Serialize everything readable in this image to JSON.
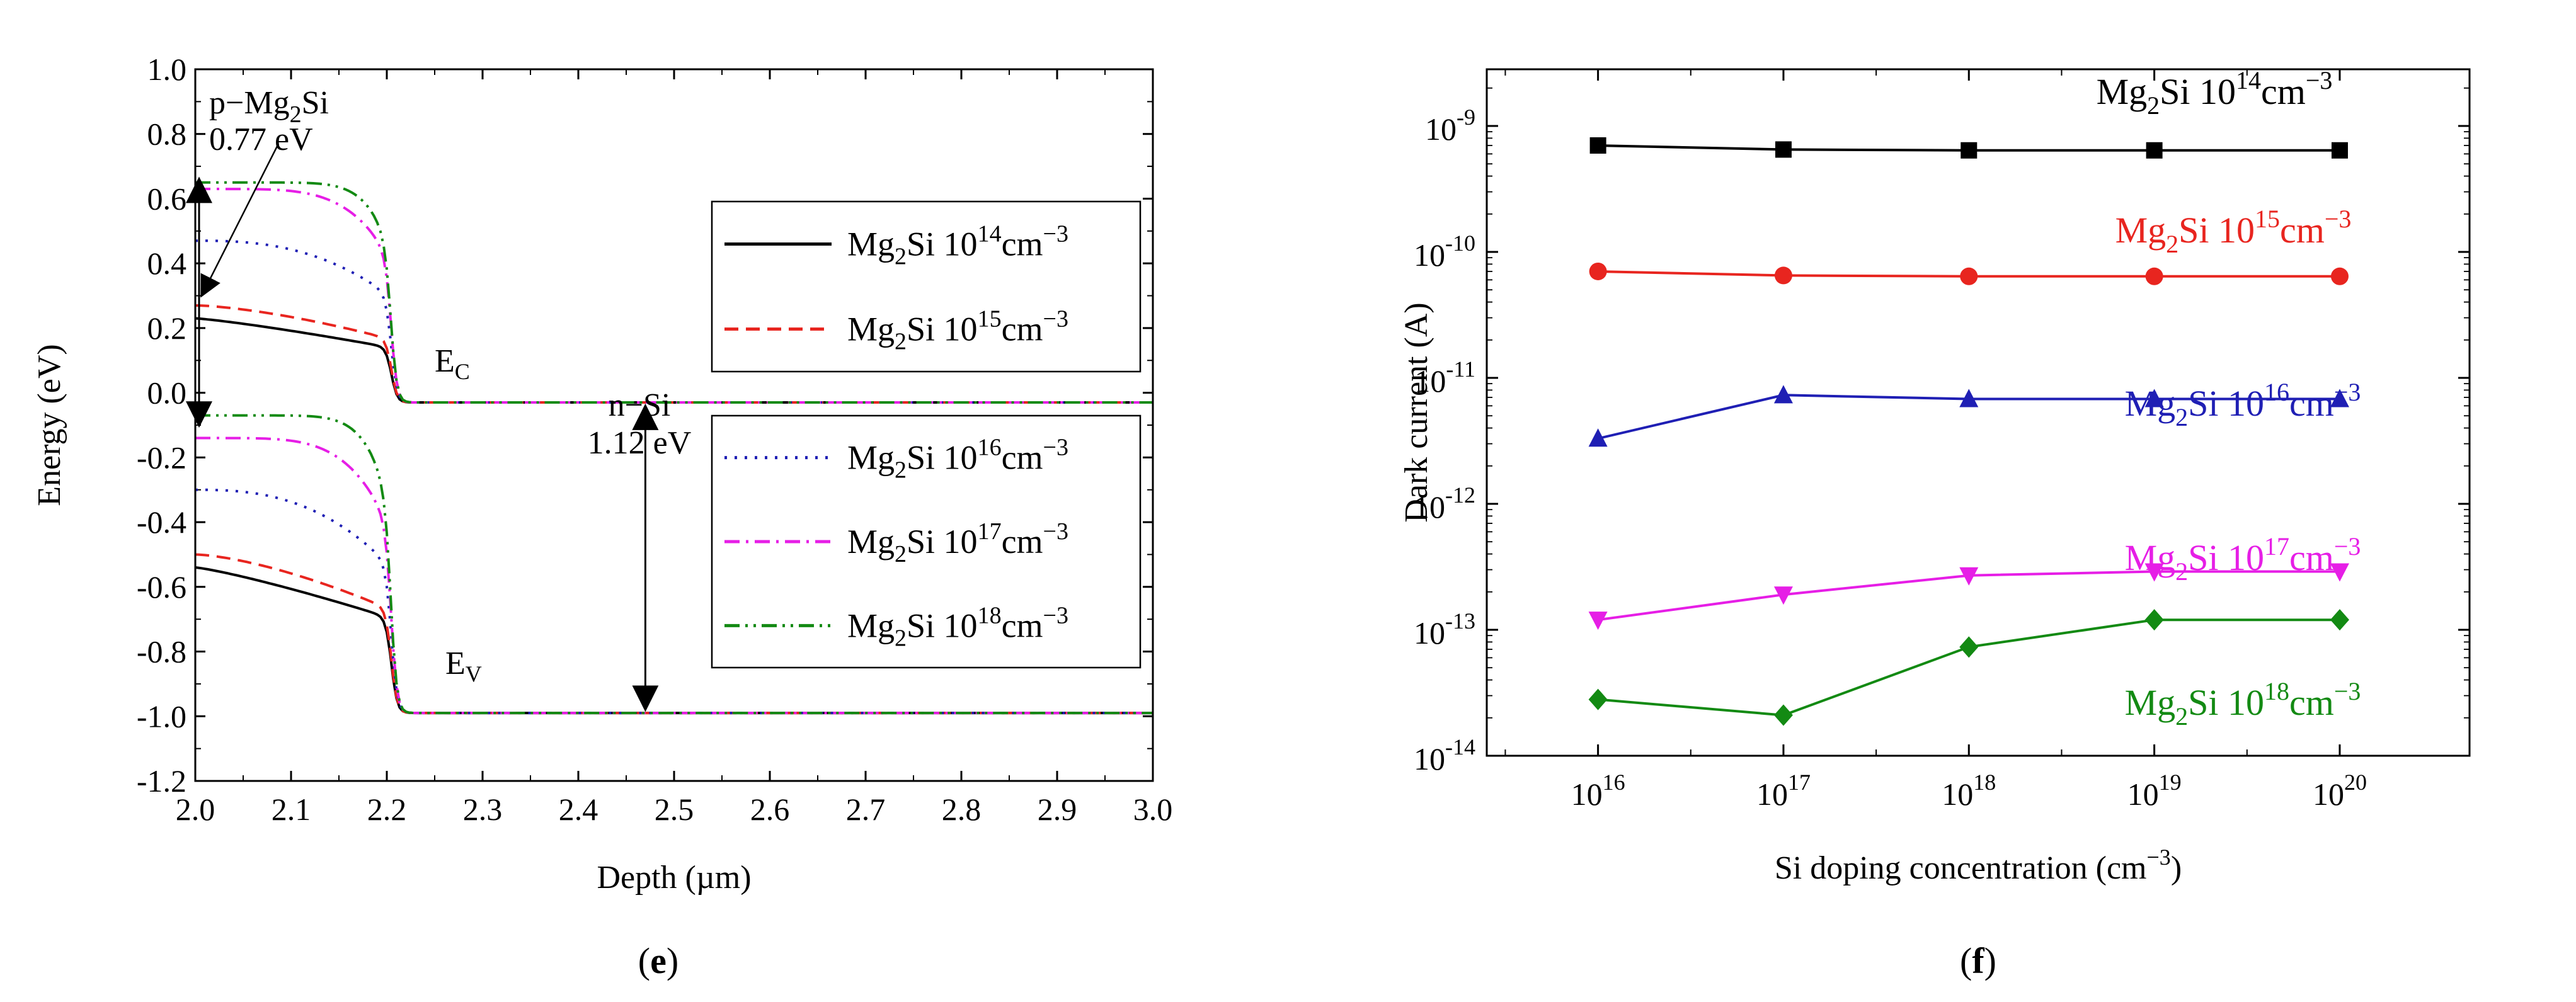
{
  "chart_data": [
    {
      "type": "line",
      "panel_label": "(e)",
      "panel_label_paren_open": "(",
      "panel_label_letter": "e",
      "panel_label_paren_close": ")",
      "xlabel": "Depth  (µm)",
      "ylabel": "Energy (eV)",
      "xlim": [
        2.0,
        3.0
      ],
      "ylim": [
        -1.2,
        1.0
      ],
      "x_ticks": [
        "2.0",
        "2.1",
        "2.2",
        "2.3",
        "2.4",
        "2.5",
        "2.6",
        "2.7",
        "2.8",
        "2.9",
        "3.0"
      ],
      "y_ticks": [
        "1.0",
        "0.8",
        "0.6",
        "0.4",
        "0.2",
        "0.0",
        "-0.2",
        "-0.4",
        "-0.6",
        "-0.8",
        "-1.0",
        "-1.2"
      ],
      "annotations": {
        "p_side_prefix": "p−Mg",
        "p_side_sub": "2",
        "p_side_suffix": "Si",
        "p_gap": "0.77 eV",
        "n_side": "n−Si",
        "n_gap": "1.12 eV",
        "ec_main": "E",
        "ec_sub": "C",
        "ev_main": "E",
        "ev_sub": "V"
      },
      "legend": {
        "prefix": "Mg",
        "sub": "2",
        "mid": "Si 10",
        "unit": "cm",
        "unit_exp": "−3",
        "entries": [
          {
            "exp": "14",
            "color": "#000000",
            "style": "solid"
          },
          {
            "exp": "15",
            "color": "#e8251f",
            "style": "dash"
          },
          {
            "exp": "16",
            "color": "#1f1fb4",
            "style": "dot"
          },
          {
            "exp": "17",
            "color": "#e61ee6",
            "style": "dashdot"
          },
          {
            "exp": "18",
            "color": "#138a13",
            "style": "dashdotdot"
          }
        ]
      },
      "series": [
        {
          "name": "Mg2Si 1e14 cm-3",
          "ec_start": 0.23,
          "ev_start": -0.54
        },
        {
          "name": "Mg2Si 1e15 cm-3",
          "ec_start": 0.27,
          "ev_start": -0.5
        },
        {
          "name": "Mg2Si 1e16 cm-3",
          "ec_start": 0.47,
          "ev_start": -0.3
        },
        {
          "name": "Mg2Si 1e17 cm-3",
          "ec_start": 0.63,
          "ev_start": -0.14
        },
        {
          "name": "Mg2Si 1e18 cm-3",
          "ec_start": 0.65,
          "ev_start": -0.07
        }
      ],
      "n_si_ec": -0.03,
      "n_si_ev": -0.99
    },
    {
      "type": "line",
      "panel_label": "(f)",
      "panel_label_paren_open": "(",
      "panel_label_letter": "f",
      "panel_label_paren_close": ")",
      "xlabel_main": "Si doping concentration (cm",
      "xlabel_exp": "−3",
      "xlabel_close": ")",
      "ylabel": "Dark current (A)",
      "x_scale": "log",
      "y_scale": "log",
      "x_ticks": [
        {
          "base": "10",
          "exp": "16"
        },
        {
          "base": "10",
          "exp": "17"
        },
        {
          "base": "10",
          "exp": "18"
        },
        {
          "base": "10",
          "exp": "19"
        },
        {
          "base": "10",
          "exp": "20"
        }
      ],
      "y_ticks": [
        {
          "base": "10",
          "exp": "-9"
        },
        {
          "base": "10",
          "exp": "-10"
        },
        {
          "base": "10",
          "exp": "-11"
        },
        {
          "base": "10",
          "exp": "-12"
        },
        {
          "base": "10",
          "exp": "-13"
        },
        {
          "base": "10",
          "exp": "-14"
        }
      ],
      "x": [
        1e+16,
        1e+17,
        1e+18,
        1e+19,
        1e+20
      ],
      "label_parts": {
        "prefix": "Mg",
        "sub": "2",
        "mid": "Si 10",
        "unit": "cm",
        "unit_exp": "−3"
      },
      "series": [
        {
          "name": "Mg2Si 1e14 cm-3",
          "exp": "14",
          "color": "#000000",
          "marker": "square",
          "values": [
            7e-10,
            6.5e-10,
            6.4e-10,
            6.4e-10,
            6.4e-10
          ]
        },
        {
          "name": "Mg2Si 1e15 cm-3",
          "exp": "15",
          "color": "#e8251f",
          "marker": "circle",
          "values": [
            7e-11,
            6.5e-11,
            6.4e-11,
            6.4e-11,
            6.4e-11
          ]
        },
        {
          "name": "Mg2Si 1e16 cm-3",
          "exp": "16",
          "color": "#1f1fb4",
          "marker": "triangle-up",
          "values": [
            3.3e-12,
            7.3e-12,
            6.8e-12,
            6.8e-12,
            6.8e-12
          ]
        },
        {
          "name": "Mg2Si 1e17 cm-3",
          "exp": "17",
          "color": "#e61ee6",
          "marker": "triangle-down",
          "values": [
            1.2e-13,
            1.9e-13,
            2.7e-13,
            2.9e-13,
            2.9e-13
          ]
        },
        {
          "name": "Mg2Si 1e18 cm-3",
          "exp": "18",
          "color": "#138a13",
          "marker": "diamond",
          "values": [
            2.8e-14,
            2.1e-14,
            7.3e-14,
            1.2e-13,
            1.2e-13
          ]
        }
      ]
    }
  ]
}
